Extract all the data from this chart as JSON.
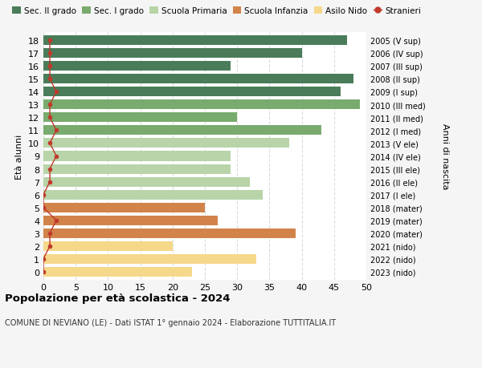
{
  "ages": [
    18,
    17,
    16,
    15,
    14,
    13,
    12,
    11,
    10,
    9,
    8,
    7,
    6,
    5,
    4,
    3,
    2,
    1,
    0
  ],
  "years": [
    "2005 (V sup)",
    "2006 (IV sup)",
    "2007 (III sup)",
    "2008 (II sup)",
    "2009 (I sup)",
    "2010 (III med)",
    "2011 (II med)",
    "2012 (I med)",
    "2013 (V ele)",
    "2014 (IV ele)",
    "2015 (III ele)",
    "2016 (II ele)",
    "2017 (I ele)",
    "2018 (mater)",
    "2019 (mater)",
    "2020 (mater)",
    "2021 (nido)",
    "2022 (nido)",
    "2023 (nido)"
  ],
  "bar_values": [
    47,
    40,
    29,
    48,
    46,
    49,
    30,
    43,
    38,
    29,
    29,
    32,
    34,
    25,
    27,
    39,
    20,
    33,
    23
  ],
  "stranieri_values": [
    1,
    1,
    1,
    1,
    2,
    1,
    1,
    2,
    1,
    2,
    1,
    1,
    0,
    0,
    2,
    1,
    1,
    0,
    0
  ],
  "bar_colors": [
    "#4a7c59",
    "#4a7c59",
    "#4a7c59",
    "#4a7c59",
    "#4a7c59",
    "#7aab6e",
    "#7aab6e",
    "#7aab6e",
    "#b8d4a8",
    "#b8d4a8",
    "#b8d4a8",
    "#b8d4a8",
    "#b8d4a8",
    "#d2834a",
    "#d2834a",
    "#d2834a",
    "#f5d88a",
    "#f5d88a",
    "#f5d88a"
  ],
  "legend_labels": [
    "Sec. II grado",
    "Sec. I grado",
    "Scuola Primaria",
    "Scuola Infanzia",
    "Asilo Nido",
    "Stranieri"
  ],
  "legend_colors": [
    "#4a7c59",
    "#7aab6e",
    "#b8d4a8",
    "#d2834a",
    "#f5d88a",
    "#c0392b"
  ],
  "stranieri_color": "#c0392b",
  "title": "Popolazione per età scolastica - 2024",
  "subtitle": "COMUNE DI NEVIANO (LE) - Dati ISTAT 1° gennaio 2024 - Elaborazione TUTTITALIA.IT",
  "ylabel": "Età alunni",
  "ylabel2": "Anni di nascita",
  "xlim": [
    0,
    50
  ],
  "xticks": [
    0,
    5,
    10,
    15,
    20,
    25,
    30,
    35,
    40,
    45,
    50
  ],
  "bg_color": "#f5f5f5",
  "bar_bg_color": "#ffffff"
}
